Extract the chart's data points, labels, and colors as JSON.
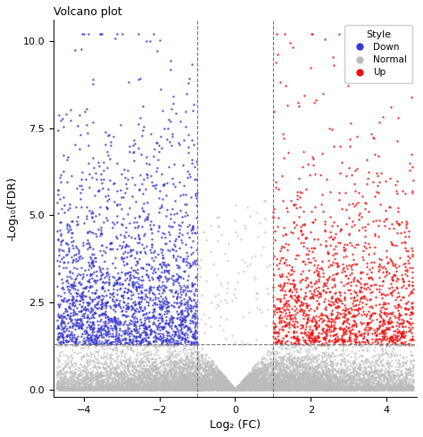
{
  "title": "Volcano plot",
  "xlabel": "Log₂ (FC)",
  "ylabel": "-Log₁₀(FDR)",
  "xlim": [
    -4.8,
    4.8
  ],
  "ylim": [
    -0.2,
    10.6
  ],
  "x_ticks": [
    -4,
    -2,
    0,
    2,
    4
  ],
  "y_ticks": [
    0.0,
    2.5,
    5.0,
    7.5,
    10.0
  ],
  "vline1": -1.0,
  "vline2": 1.0,
  "hline": 1.3,
  "fc_threshold": 1.0,
  "fdr_threshold": 1.3,
  "color_down": "#3939CC",
  "color_normal": "#BBBBBB",
  "color_up": "#EE1111",
  "legend_title": "Style",
  "legend_labels": [
    "Down",
    "Normal",
    "Up"
  ],
  "bg_color": "#FFFFFF",
  "seed": 42,
  "point_size": 3,
  "title_fontsize": 9,
  "axis_label_fontsize": 9,
  "tick_fontsize": 8
}
